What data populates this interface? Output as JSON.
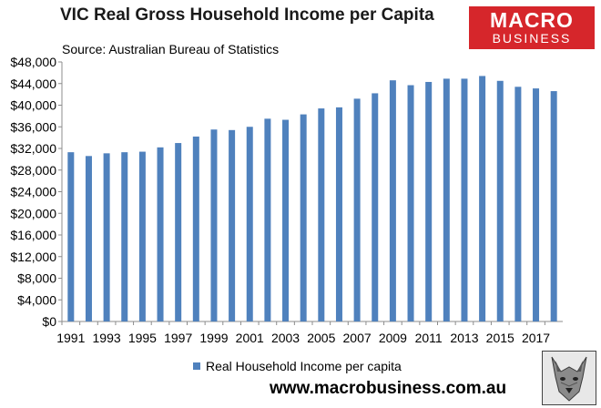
{
  "title": "VIC Real Gross Household Income per Capita",
  "subtitle": "Source: Australian Bureau of Statistics",
  "logo": {
    "line1": "MACRO",
    "line2": "BUSINESS",
    "icon": "macro-business-logo",
    "color": "#d6262b"
  },
  "footer": {
    "url": "www.macrobusiness.com.au",
    "icon": "wolf-logo-icon"
  },
  "chart_data": {
    "type": "bar",
    "title": "VIC Real Gross Household Income per Capita",
    "series": [
      {
        "name": "Real Household Income per capita",
        "color": "#4f81bd",
        "values": [
          31300,
          30600,
          31100,
          31300,
          31400,
          32200,
          33000,
          34200,
          35500,
          35400,
          36000,
          37500,
          37300,
          38300,
          39400,
          39600,
          41200,
          42200,
          44600,
          43700,
          44300,
          44900,
          44900,
          45400,
          44500,
          43400,
          43100,
          42600
        ]
      }
    ],
    "categories": [
      "1991",
      "1992",
      "1993",
      "1994",
      "1995",
      "1996",
      "1997",
      "1998",
      "1999",
      "2000",
      "2001",
      "2002",
      "2003",
      "2004",
      "2005",
      "2006",
      "2007",
      "2008",
      "2009",
      "2010",
      "2011",
      "2012",
      "2013",
      "2014",
      "2015",
      "2016",
      "2017",
      "2018"
    ],
    "x_tick_labels": [
      "1991",
      "1993",
      "1995",
      "1997",
      "1999",
      "2001",
      "2003",
      "2005",
      "2007",
      "2009",
      "2011",
      "2013",
      "2015",
      "2017"
    ],
    "y_tick_labels": [
      "$0",
      "$4,000",
      "$8,000",
      "$12,000",
      "$16,000",
      "$20,000",
      "$24,000",
      "$28,000",
      "$32,000",
      "$36,000",
      "$40,000",
      "$44,000",
      "$48,000"
    ],
    "ylim": [
      0,
      48000
    ],
    "grid": false,
    "legend": "bottom"
  }
}
